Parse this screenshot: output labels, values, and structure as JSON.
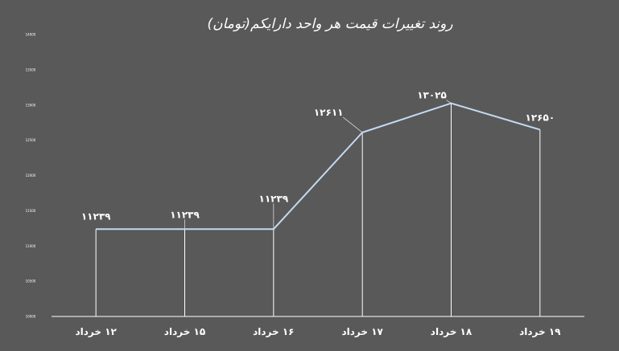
{
  "chart_data": {
    "type": "line",
    "title": "روند تغییرات قیمت هر واحد دارایکم(تومان)",
    "xlabel": "",
    "ylabel": "",
    "categories": [
      "۱۲ خرداد",
      "۱۵ خرداد",
      "۱۶ خرداد",
      "۱۷ خرداد",
      "۱۸ خرداد",
      "۱۹ خرداد"
    ],
    "values": [
      11239,
      11239,
      11239,
      12611,
      13025,
      12650
    ],
    "data_labels": [
      "۱۱۲۳۹",
      "۱۱۲۳۹",
      "۱۱۲۳۹",
      "۱۲۶۱۱",
      "۱۳۰۲۵",
      "۱۲۶۵۰"
    ],
    "ylim": [
      10000,
      14000
    ],
    "yticks": [
      10000,
      10500,
      11000,
      11500,
      12000,
      12500,
      13000,
      13500,
      14000
    ],
    "ytick_labels": [
      "10000",
      "10500",
      "11000",
      "11500",
      "12000",
      "12500",
      "13000",
      "13500",
      "14000"
    ],
    "drop_lines": true,
    "grid": false,
    "legend": "none",
    "colors": {
      "background": "#595959",
      "line": "#c5d9f1",
      "drop_line": "#ffffff",
      "axis": "#ffffff",
      "text": "#ffffff"
    }
  }
}
